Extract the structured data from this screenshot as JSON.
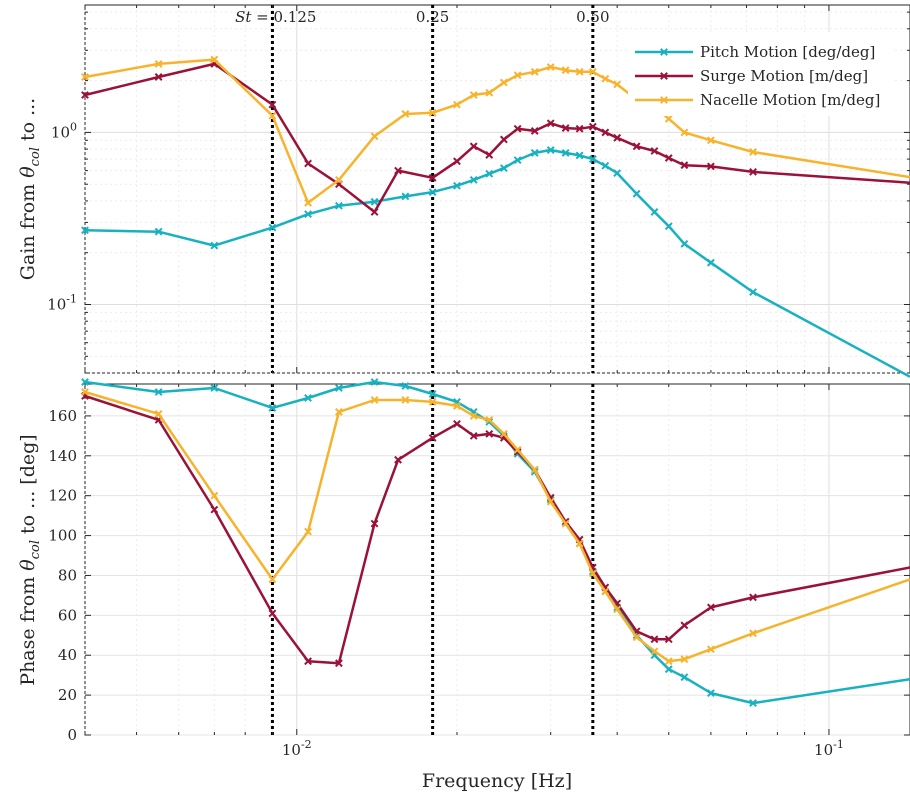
{
  "chart_data": {
    "type": "line",
    "xlabel": "Frequency [Hz]",
    "x_scale": "log",
    "xlim": [
      0.004,
      0.142
    ],
    "x_tick_labels": [
      {
        "value": 0.01,
        "label": "10^{-2}"
      },
      {
        "value": 0.1,
        "label": "10^{-1}"
      }
    ],
    "grid": true,
    "legend_position": "top-right",
    "vlines": [
      {
        "x": 0.009,
        "label": "St = 0.125"
      },
      {
        "x": 0.018,
        "label": "0.25"
      },
      {
        "x": 0.036,
        "label": "0.50"
      }
    ],
    "colors": {
      "pitch": "#17b1c0",
      "surge": "#9b1239",
      "nacelle": "#f8b32c",
      "grid": "#e4e4e4",
      "axis": "#262626"
    },
    "panels": [
      {
        "id": "gain",
        "ylabel_main": "Gain from ",
        "ylabel_symbol": "θ",
        "ylabel_sub": "col",
        "ylabel_tail": " to ...",
        "y_scale": "log",
        "ylim": [
          0.04,
          5.5
        ],
        "y_tick_labels": [
          {
            "value": 0.1,
            "label": "10^{-1}"
          },
          {
            "value": 1,
            "label": "10^{0}"
          }
        ],
        "series": [
          {
            "name": "Pitch Motion [deg/deg]",
            "color_key": "pitch",
            "x": [
              0.004,
              0.0055,
              0.007,
              0.009,
              0.0105,
              0.012,
              0.014,
              0.016,
              0.018,
              0.02,
              0.0215,
              0.023,
              0.0245,
              0.026,
              0.028,
              0.03,
              0.032,
              0.034,
              0.036,
              0.038,
              0.04,
              0.0435,
              0.047,
              0.05,
              0.0535,
              0.06,
              0.072,
              0.142
            ],
            "values": [
              0.27,
              0.265,
              0.22,
              0.28,
              0.335,
              0.375,
              0.395,
              0.425,
              0.45,
              0.49,
              0.53,
              0.575,
              0.62,
              0.69,
              0.76,
              0.79,
              0.76,
              0.735,
              0.7,
              0.64,
              0.58,
              0.44,
              0.345,
              0.285,
              0.225,
              0.175,
              0.118,
              0.038
            ]
          },
          {
            "name": "Surge Motion [m/deg]",
            "color_key": "surge",
            "x": [
              0.004,
              0.0055,
              0.007,
              0.009,
              0.0105,
              0.012,
              0.014,
              0.0155,
              0.018,
              0.02,
              0.0215,
              0.023,
              0.0245,
              0.026,
              0.028,
              0.03,
              0.032,
              0.034,
              0.036,
              0.038,
              0.04,
              0.0435,
              0.047,
              0.05,
              0.0535,
              0.06,
              0.072,
              0.142
            ],
            "values": [
              1.65,
              2.1,
              2.5,
              1.45,
              0.66,
              0.5,
              0.345,
              0.6,
              0.545,
              0.68,
              0.83,
              0.74,
              0.91,
              1.05,
              1.02,
              1.13,
              1.06,
              1.05,
              1.08,
              1.0,
              0.93,
              0.83,
              0.78,
              0.71,
              0.645,
              0.635,
              0.59,
              0.51
            ]
          },
          {
            "name": "Nacelle Motion [m/deg]",
            "color_key": "nacelle",
            "x": [
              0.004,
              0.0055,
              0.007,
              0.009,
              0.0105,
              0.012,
              0.014,
              0.016,
              0.018,
              0.02,
              0.0215,
              0.023,
              0.0245,
              0.026,
              0.028,
              0.03,
              0.032,
              0.034,
              0.036,
              0.038,
              0.04,
              0.0435,
              0.047,
              0.05,
              0.0535,
              0.06,
              0.072,
              0.142
            ],
            "values": [
              2.1,
              2.5,
              2.65,
              1.25,
              0.39,
              0.53,
              0.95,
              1.28,
              1.3,
              1.45,
              1.65,
              1.7,
              1.95,
              2.15,
              2.25,
              2.4,
              2.3,
              2.25,
              2.25,
              2.05,
              1.9,
              1.55,
              1.4,
              1.2,
              1.0,
              0.9,
              0.77,
              0.55
            ]
          }
        ]
      },
      {
        "id": "phase",
        "ylabel_main": "Phase from ",
        "ylabel_symbol": "θ",
        "ylabel_sub": "col",
        "ylabel_tail": " to ...  [deg]",
        "y_scale": "linear",
        "ylim": [
          0,
          176
        ],
        "y_ticks": [
          0,
          20,
          40,
          60,
          80,
          100,
          120,
          140,
          160
        ],
        "series": [
          {
            "name": "Pitch Motion [deg/deg]",
            "color_key": "pitch",
            "x": [
              0.004,
              0.0055,
              0.007,
              0.009,
              0.0105,
              0.012,
              0.014,
              0.016,
              0.018,
              0.02,
              0.0215,
              0.023,
              0.0245,
              0.026,
              0.028,
              0.03,
              0.032,
              0.034,
              0.036,
              0.038,
              0.04,
              0.0435,
              0.047,
              0.05,
              0.0535,
              0.06,
              0.072,
              0.142
            ],
            "values": [
              177,
              172,
              174,
              164,
              169,
              174,
              177,
              175,
              171,
              167,
              162,
              157,
              150,
              141,
              132,
              118,
              106,
              96,
              82,
              72,
              64,
              50,
              40,
              33,
              29,
              21,
              16,
              28
            ]
          },
          {
            "name": "Surge Motion [m/deg]",
            "color_key": "surge",
            "x": [
              0.004,
              0.0055,
              0.007,
              0.009,
              0.0105,
              0.012,
              0.014,
              0.0155,
              0.018,
              0.02,
              0.0215,
              0.023,
              0.0245,
              0.026,
              0.028,
              0.03,
              0.032,
              0.034,
              0.036,
              0.038,
              0.04,
              0.0435,
              0.047,
              0.05,
              0.0535,
              0.06,
              0.072,
              0.142
            ],
            "values": [
              170,
              158,
              113,
              61,
              37,
              36,
              106,
              138,
              149,
              156,
              150,
              151,
              149,
              142,
              133,
              119,
              107,
              98,
              84,
              74,
              66,
              52,
              48,
              48,
              55,
              64,
              69,
              84
            ]
          },
          {
            "name": "Nacelle Motion [m/deg]",
            "color_key": "nacelle",
            "x": [
              0.004,
              0.0055,
              0.007,
              0.009,
              0.0105,
              0.012,
              0.014,
              0.016,
              0.018,
              0.02,
              0.0215,
              0.023,
              0.0245,
              0.026,
              0.028,
              0.03,
              0.032,
              0.034,
              0.036,
              0.038,
              0.04,
              0.0435,
              0.047,
              0.05,
              0.0535,
              0.06,
              0.072,
              0.142
            ],
            "values": [
              172,
              161,
              120,
              78,
              102,
              162,
              168,
              168,
              167,
              165,
              160,
              158,
              151,
              143,
              133,
              117,
              106,
              96,
              81,
              72,
              63,
              49,
              42,
              37,
              38,
              43,
              51,
              78
            ]
          }
        ]
      }
    ]
  }
}
